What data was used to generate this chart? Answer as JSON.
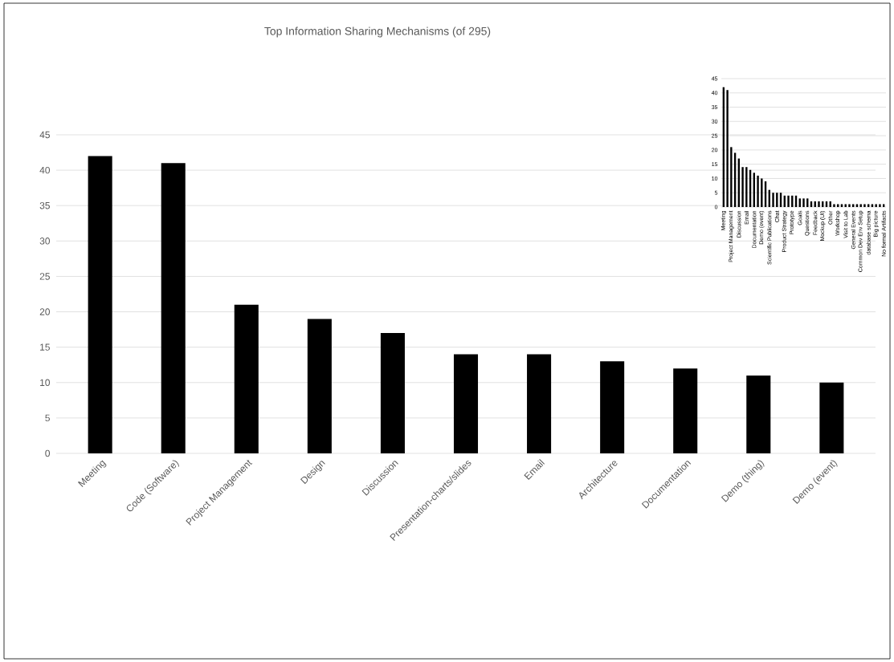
{
  "chart_data": [
    {
      "type": "bar",
      "title": "Top Information  Sharing Mechanisms  (of 295)",
      "categories": [
        "Meeting",
        "Code (Software)",
        "Project Management",
        "Design",
        "Discussion",
        "Presentation-charts/slides",
        "Email",
        "Architecture",
        "Documentation",
        "Demo (thing)",
        "Demo (event)"
      ],
      "values": [
        42,
        41,
        21,
        19,
        17,
        14,
        14,
        13,
        12,
        11,
        10
      ],
      "color": "#000000",
      "ylim": [
        0,
        45
      ],
      "yticks": [
        0,
        5,
        10,
        15,
        20,
        25,
        30,
        35,
        40,
        45
      ],
      "grid": "y"
    },
    {
      "type": "bar",
      "categories": [
        "Meeting",
        null,
        "Project Management",
        null,
        "Discussion",
        null,
        "Email",
        null,
        "Documentation",
        null,
        "Demo (event)",
        null,
        "Scientific Publications",
        null,
        "Chat",
        null,
        "Product Strategy",
        null,
        "Prototype",
        null,
        "Goals",
        null,
        "Questions",
        null,
        "Feedback",
        null,
        "Mockup (UI)",
        null,
        "Other",
        null,
        "Workshop",
        null,
        "Visit to Lab",
        null,
        "General Events",
        null,
        "Common Dev Env Setup",
        null,
        "database schema",
        null,
        "Big picture",
        null,
        "No formal Artifacts"
      ],
      "values": [
        42,
        41,
        21,
        19,
        17,
        14,
        14,
        13,
        12,
        11,
        10,
        9,
        6,
        5,
        5,
        5,
        4,
        4,
        4,
        4,
        3,
        3,
        3,
        2,
        2,
        2,
        2,
        2,
        2,
        1,
        1,
        1,
        1,
        1,
        1,
        1,
        1,
        1,
        1,
        1,
        1,
        1,
        1
      ],
      "color": "#000000",
      "ylim": [
        0,
        45
      ],
      "yticks": [
        0,
        5,
        10,
        15,
        20,
        25,
        30,
        35,
        40,
        45
      ],
      "grid": "y"
    }
  ]
}
